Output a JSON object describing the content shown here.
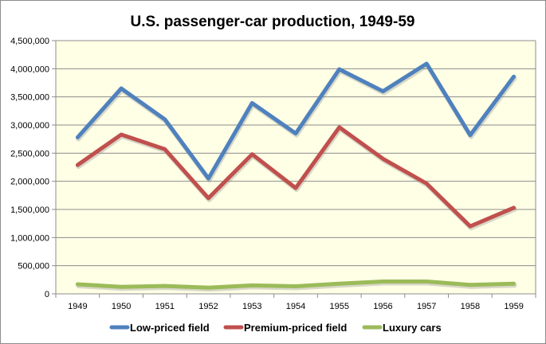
{
  "chart_data": {
    "type": "line",
    "title": "U.S. passenger-car production, 1949-59",
    "xlabel": "",
    "ylabel": "",
    "categories": [
      "1949",
      "1950",
      "1951",
      "1952",
      "1953",
      "1954",
      "1955",
      "1956",
      "1957",
      "1958",
      "1959"
    ],
    "ylim": [
      0,
      4500000
    ],
    "yticks": [
      0,
      500000,
      1000000,
      1500000,
      2000000,
      2500000,
      3000000,
      3500000,
      4000000,
      4500000
    ],
    "ytick_labels": [
      "0",
      "500,000",
      "1,000,000",
      "1,500,000",
      "2,000,000",
      "2,500,000",
      "3,000,000",
      "3,500,000",
      "4,000,000",
      "4,500,000"
    ],
    "grid": true,
    "legend_position": "bottom",
    "plot_background": "#FFFFE6",
    "series": [
      {
        "name": "Low-priced field",
        "color": "#4F81BD",
        "values": [
          2780000,
          3650000,
          3100000,
          2050000,
          3390000,
          2850000,
          3990000,
          3600000,
          4090000,
          2820000,
          3860000
        ]
      },
      {
        "name": "Premium-priced field",
        "color": "#C0504D",
        "values": [
          2290000,
          2830000,
          2570000,
          1700000,
          2480000,
          1880000,
          2960000,
          2400000,
          1960000,
          1200000,
          1530000
        ]
      },
      {
        "name": "Luxury cars",
        "color": "#9BBB59",
        "values": [
          170000,
          125000,
          140000,
          110000,
          150000,
          135000,
          180000,
          220000,
          220000,
          160000,
          180000
        ]
      }
    ]
  }
}
